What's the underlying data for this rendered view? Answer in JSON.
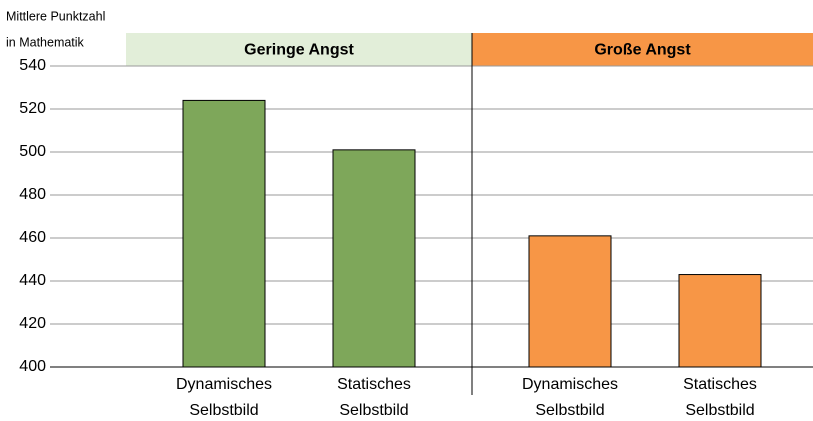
{
  "chart_data": {
    "type": "bar",
    "y_label": [
      "Mittlere Punktzahl",
      "in Mathematik"
    ],
    "series": [
      {
        "name": "Geringe Angst",
        "color": "#7ea75a",
        "header_color": "#e2eed9",
        "categories": [
          [
            "Dynamisches",
            "Selbstbild"
          ],
          [
            "Statisches",
            "Selbstbild"
          ]
        ],
        "values": [
          524,
          501
        ]
      },
      {
        "name": "Große Angst",
        "color": "#f79646",
        "header_color": "#f79646",
        "categories": [
          [
            "Dynamisches",
            "Selbstbild"
          ],
          [
            "Statisches",
            "Selbstbild"
          ]
        ],
        "values": [
          461,
          443
        ]
      }
    ],
    "ylim": [
      400,
      540
    ],
    "yticks": [
      400,
      420,
      440,
      460,
      480,
      500,
      520,
      540
    ],
    "grid": true
  }
}
